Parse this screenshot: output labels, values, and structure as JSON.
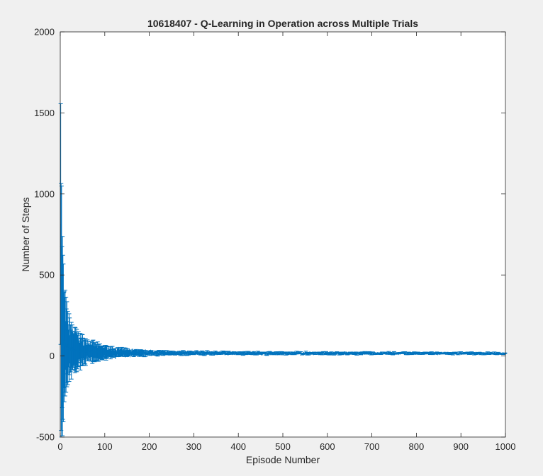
{
  "chart_data": {
    "type": "line",
    "subtype": "errorbar",
    "title": "10618407 - Q-Learning in Operation across Multiple Trials",
    "xlabel": "Episode Number",
    "ylabel": "Number of Steps",
    "xlim": [
      0,
      1000
    ],
    "ylim": [
      -500,
      2000
    ],
    "xticks": [
      0,
      100,
      200,
      300,
      400,
      500,
      600,
      700,
      800,
      900,
      1000
    ],
    "yticks": [
      -500,
      0,
      500,
      1000,
      1500,
      2000
    ],
    "grid": false,
    "legend": "none",
    "color": "#0072bd",
    "series": [
      {
        "episodes": [
          1,
          1000
        ],
        "mean_profile": {
          "episodes": [
            1,
            3,
            5,
            10,
            20,
            30,
            50,
            75,
            100,
            150,
            200,
            300,
            500,
            1000
          ],
          "values": [
            650,
            200,
            120,
            70,
            50,
            40,
            30,
            25,
            22,
            20,
            19,
            18,
            17,
            16
          ]
        },
        "error_profile": {
          "episodes": [
            1,
            3,
            5,
            10,
            20,
            30,
            50,
            75,
            100,
            150,
            200,
            300,
            500,
            1000
          ],
          "values": [
            1350,
            700,
            500,
            250,
            150,
            110,
            70,
            45,
            30,
            18,
            12,
            8,
            6,
            4
          ]
        }
      }
    ]
  }
}
